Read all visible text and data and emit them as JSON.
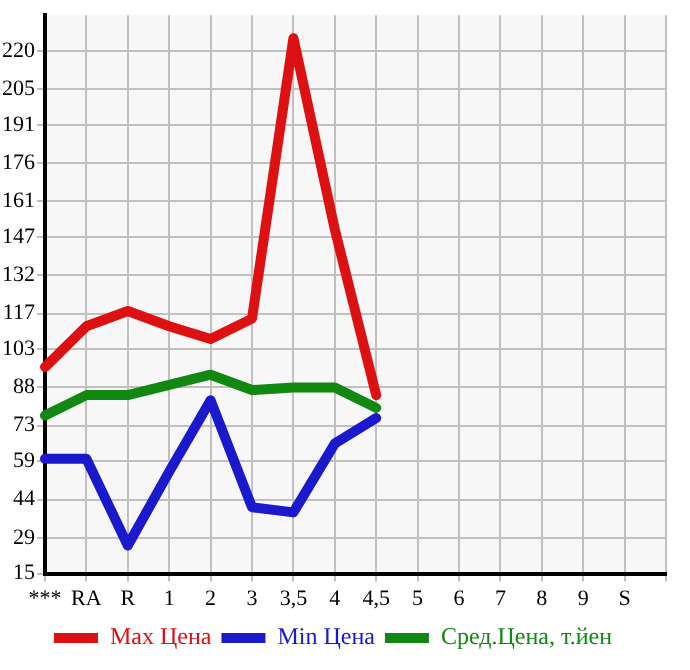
{
  "chart_data": {
    "type": "line",
    "categories": [
      "***",
      "RA",
      "R",
      "1",
      "2",
      "3",
      "3,5",
      "4",
      "4,5",
      "5",
      "6",
      "7",
      "8",
      "9",
      "S",
      null
    ],
    "series": [
      {
        "name": "Max Цена",
        "color": "#dd1111",
        "values": [
          96,
          112,
          118,
          112,
          107,
          115,
          225,
          150,
          85,
          null,
          null,
          null,
          null,
          null,
          null,
          null
        ]
      },
      {
        "name": "Min Цена",
        "color": "#1a1acc",
        "values": [
          60,
          60,
          26,
          55,
          83,
          41,
          39,
          66,
          76,
          null,
          null,
          null,
          null,
          null,
          null,
          null
        ]
      },
      {
        "name": "Сред.Цена, т.йен",
        "color": "#118811",
        "values": [
          77,
          85,
          85,
          89,
          93,
          87,
          88,
          88,
          80,
          null,
          null,
          null,
          null,
          null,
          null,
          null
        ]
      }
    ],
    "ylim": [
      15,
      234
    ],
    "yticks": [
      15,
      29,
      44,
      59,
      73,
      88,
      103,
      117,
      132,
      147,
      161,
      176,
      191,
      205,
      220
    ],
    "grid": true,
    "legend": "bottom",
    "marker": "none",
    "line_style": "solid"
  }
}
